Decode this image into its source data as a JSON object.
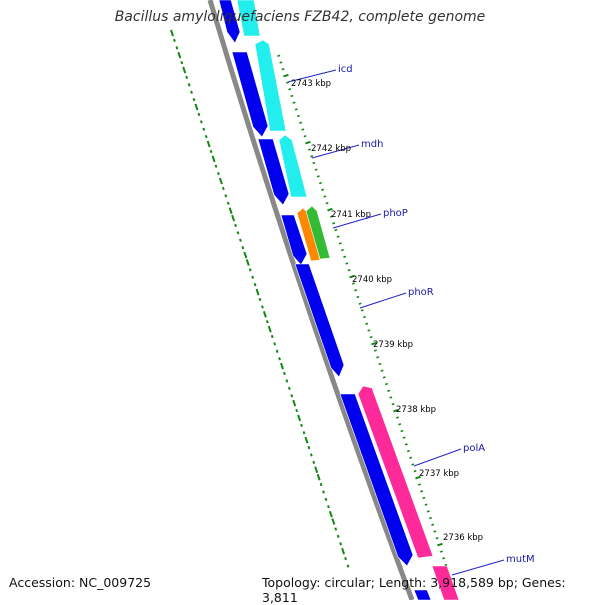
{
  "header": {
    "title": "Bacillus amyloliquefaciens FZB42, complete genome"
  },
  "footer": {
    "accession": "Accession: NC_009725",
    "summary": "Topology: circular; Length: 3,918,589 bp; Genes: 3,811"
  },
  "colors": {
    "forward_cds": "#0000ee",
    "reverse_cds_cyan": "#22eeee",
    "reverse_cds_pink": "#ff2a9a",
    "phoP_orange": "#ff8800",
    "phoP_green": "#33bb33",
    "backbone": "#888888",
    "gc_ticks": "#118811",
    "label_lines": "#2222cc",
    "label_text": "#1a1aa8"
  },
  "ruler": {
    "unit": "kbp",
    "ticks": [
      {
        "label": "2743 kbp"
      },
      {
        "label": "2742 kbp"
      },
      {
        "label": "2741 kbp"
      },
      {
        "label": "2740 kbp"
      },
      {
        "label": "2739 kbp"
      },
      {
        "label": "2738 kbp"
      },
      {
        "label": "2737 kbp"
      },
      {
        "label": "2736 kbp"
      }
    ]
  },
  "gene_labels": [
    {
      "name": "icd"
    },
    {
      "name": "mdh"
    },
    {
      "name": "phoP"
    },
    {
      "name": "phoR"
    },
    {
      "name": "polA"
    },
    {
      "name": "mutM"
    }
  ]
}
